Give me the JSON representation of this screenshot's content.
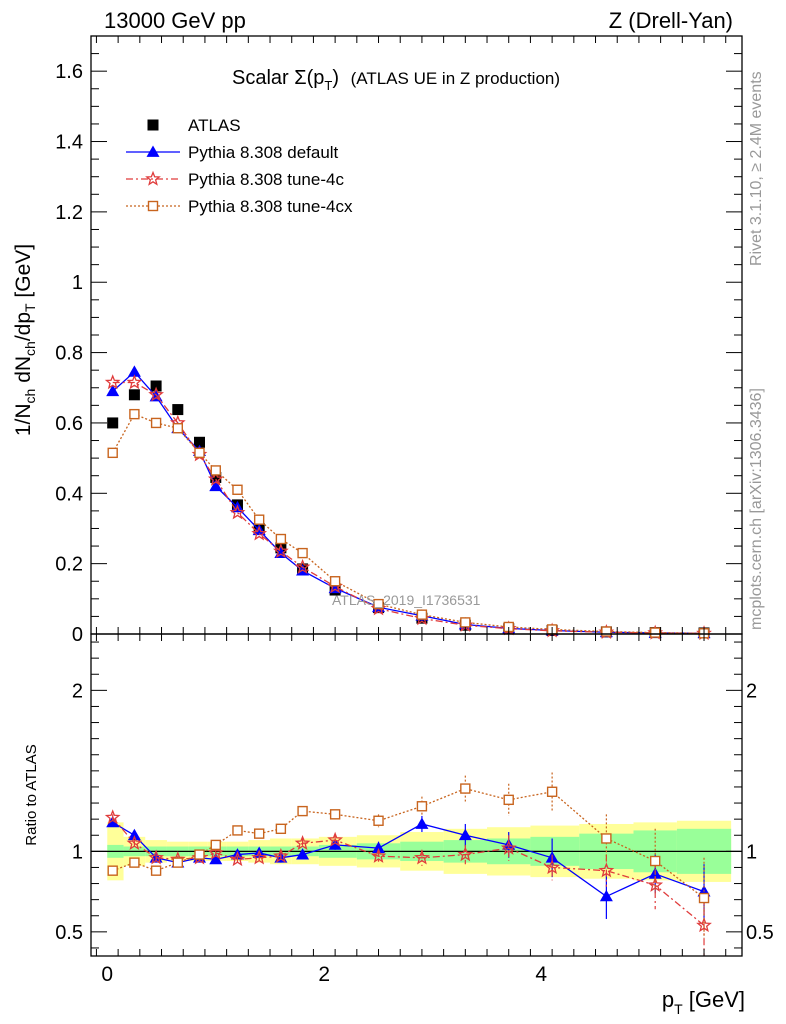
{
  "header": {
    "left": "13000 GeV pp",
    "right": "Z (Drell-Yan)"
  },
  "title": {
    "main": "Scalar Σ(p",
    "sub": "T",
    "close": ")",
    "tail": "(ATLAS UE in Z production)"
  },
  "side_labels": {
    "rivet": "Rivet 3.1.10, ≥ 2.4M events",
    "mcplots": "mcplots.cern.ch [arXiv:1306.3436]"
  },
  "watermark": "ATLAS_2019_I1736531",
  "colors": {
    "atlas": "#000000",
    "default": "#0000ff",
    "tune4c": "#e03c3c",
    "tune4cx": "#c8641e",
    "band_stat": "#99ff99",
    "band_tot": "#ffff99"
  },
  "chart_data": {
    "type": "line",
    "xlabel": "p_T [GeV]",
    "x_axis": {
      "range": [
        -0.15,
        5.85
      ],
      "ticks": [
        0,
        2,
        4
      ]
    },
    "main_panel": {
      "ylabel": "1/N_ch dN_ch/dp_T [GeV]",
      "ylim": [
        0,
        1.7
      ],
      "y_ticks": [
        0,
        0.2,
        0.4,
        0.6,
        0.8,
        1,
        1.2,
        1.4,
        1.6
      ],
      "y_tick_labels": [
        "0",
        "0.2",
        "0.4",
        "0.6",
        "0.8",
        "1",
        "1.2",
        "1.4",
        "1.6"
      ]
    },
    "ratio_panel": {
      "ylabel": "Ratio to ATLAS",
      "ylim": [
        0.35,
        2.35
      ],
      "y_ticks": [
        0.5,
        1,
        2
      ],
      "y_tick_labels": [
        "0.5",
        "1",
        "2"
      ]
    },
    "x": [
      0.05,
      0.25,
      0.45,
      0.65,
      0.85,
      1.0,
      1.2,
      1.4,
      1.6,
      1.8,
      2.1,
      2.5,
      2.9,
      3.3,
      3.7,
      4.1,
      4.6,
      5.05,
      5.5
    ],
    "bin_edges": [
      0.0,
      0.15,
      0.35,
      0.55,
      0.75,
      0.925,
      1.1,
      1.3,
      1.5,
      1.7,
      1.95,
      2.3,
      2.7,
      3.1,
      3.5,
      3.9,
      4.35,
      4.85,
      5.25,
      5.75
    ],
    "series": [
      {
        "name": "ATLAS",
        "marker": "square",
        "values": [
          0.6,
          0.68,
          0.705,
          0.638,
          0.545,
          0.445,
          0.367,
          0.3,
          0.245,
          0.185,
          0.125,
          0.075,
          0.045,
          0.025,
          0.015,
          0.01,
          0.006,
          0.004,
          0.003
        ]
      },
      {
        "name": "Pythia 8.308 default",
        "marker": "triangle",
        "line": "solid",
        "values": [
          0.69,
          0.745,
          0.675,
          0.585,
          0.52,
          0.42,
          0.36,
          0.295,
          0.23,
          0.18,
          0.13,
          0.076,
          0.052,
          0.027,
          0.016,
          0.01,
          0.005,
          0.003,
          0.002
        ],
        "ratio": [
          1.18,
          1.1,
          0.96,
          0.93,
          0.96,
          0.95,
          0.98,
          0.99,
          0.96,
          0.98,
          1.04,
          1.02,
          1.17,
          1.1,
          1.04,
          0.96,
          0.72,
          0.86,
          0.75
        ],
        "ratio_err": [
          0.02,
          0.02,
          0.02,
          0.02,
          0.02,
          0.02,
          0.02,
          0.02,
          0.03,
          0.03,
          0.03,
          0.04,
          0.05,
          0.07,
          0.08,
          0.12,
          0.14,
          0.12,
          0.17
        ]
      },
      {
        "name": "Pythia 8.308 tune-4c",
        "marker": "star",
        "line": "dashdot",
        "values": [
          0.715,
          0.715,
          0.68,
          0.6,
          0.51,
          0.44,
          0.345,
          0.285,
          0.235,
          0.19,
          0.135,
          0.072,
          0.044,
          0.025,
          0.015,
          0.009,
          0.005,
          0.003,
          0.0016
        ],
        "ratio": [
          1.21,
          1.05,
          0.96,
          0.95,
          0.96,
          0.99,
          0.95,
          0.96,
          0.97,
          1.05,
          1.07,
          0.97,
          0.96,
          0.98,
          1.02,
          0.9,
          0.88,
          0.79,
          0.54
        ],
        "ratio_err": [
          0.02,
          0.02,
          0.02,
          0.02,
          0.02,
          0.02,
          0.02,
          0.02,
          0.03,
          0.03,
          0.03,
          0.04,
          0.05,
          0.06,
          0.08,
          0.08,
          0.1,
          0.15,
          0.2
        ]
      },
      {
        "name": "Pythia 8.308 tune-4cx",
        "marker": "open-square",
        "line": "dotted",
        "values": [
          0.515,
          0.625,
          0.6,
          0.585,
          0.515,
          0.465,
          0.41,
          0.325,
          0.27,
          0.23,
          0.15,
          0.085,
          0.055,
          0.033,
          0.02,
          0.013,
          0.007,
          0.004,
          0.002
        ],
        "ratio": [
          0.88,
          0.93,
          0.88,
          0.93,
          0.98,
          1.04,
          1.13,
          1.11,
          1.14,
          1.25,
          1.23,
          1.19,
          1.28,
          1.39,
          1.32,
          1.37,
          1.08,
          0.94,
          0.71
        ],
        "ratio_err": [
          0.02,
          0.02,
          0.02,
          0.02,
          0.02,
          0.02,
          0.02,
          0.02,
          0.03,
          0.03,
          0.03,
          0.04,
          0.06,
          0.08,
          0.1,
          0.12,
          0.15,
          0.2,
          0.25
        ]
      }
    ],
    "ratio_bands": {
      "stat": [
        0.04,
        0.03,
        0.03,
        0.03,
        0.03,
        0.03,
        0.03,
        0.03,
        0.03,
        0.03,
        0.04,
        0.05,
        0.06,
        0.07,
        0.08,
        0.09,
        0.11,
        0.13,
        0.14
      ],
      "total": [
        0.18,
        0.09,
        0.07,
        0.06,
        0.06,
        0.06,
        0.06,
        0.07,
        0.08,
        0.08,
        0.09,
        0.1,
        0.12,
        0.14,
        0.15,
        0.16,
        0.17,
        0.18,
        0.19
      ]
    },
    "legend": {
      "placement": "top-left"
    }
  }
}
